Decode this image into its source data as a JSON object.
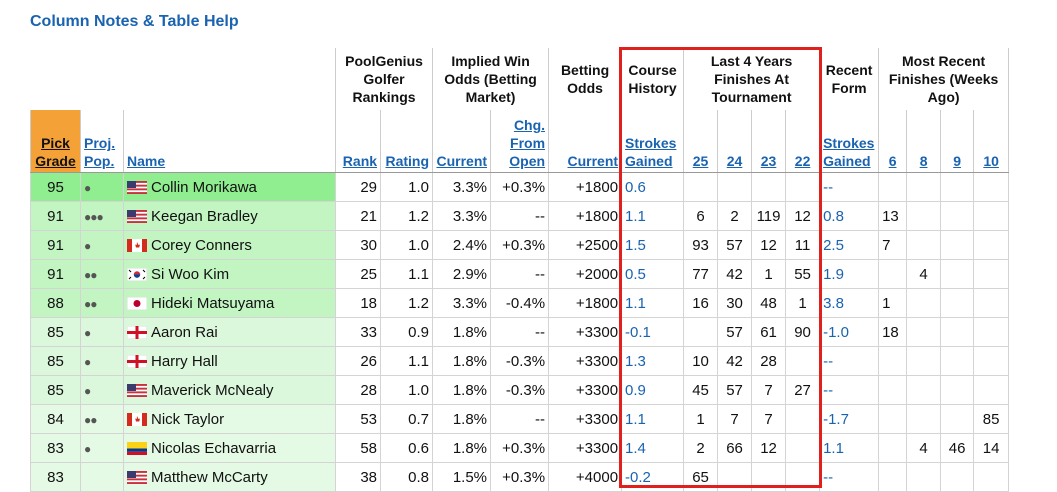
{
  "header": {
    "title": "Column Notes & Table Help"
  },
  "table": {
    "groups": [
      "PoolGenius Golfer Rankings",
      "Implied Win Odds (Betting Market)",
      "Betting Odds",
      "Course History",
      "Last 4 Years Finishes At Tournament",
      "Recent Form",
      "Most Recent Finishes (Weeks Ago)"
    ],
    "columns": [
      "Pick Grade",
      "Proj. Pop.",
      "Name",
      "Rank",
      "Rating",
      "Current",
      "Chg. From Open",
      "Current",
      "Strokes Gained",
      "25",
      "24",
      "23",
      "22",
      "Strokes Gained",
      "6",
      "8",
      "9",
      "10"
    ],
    "rows": [
      [
        "95",
        "●",
        "Collin Morikawa",
        "29",
        "1.0",
        "3.3%",
        "+0.3%",
        "+1800",
        "0.6",
        null,
        null,
        null,
        null,
        "--",
        null,
        null,
        null,
        null
      ],
      [
        "91",
        "●●●",
        "Keegan Bradley",
        "21",
        "1.2",
        "3.3%",
        "--",
        "+1800",
        "1.1",
        "6",
        "2",
        "119",
        "12",
        "0.8",
        "13",
        null,
        null,
        null
      ],
      [
        "91",
        "●",
        "Corey Conners",
        "30",
        "1.0",
        "2.4%",
        "+0.3%",
        "+2500",
        "1.5",
        "93",
        "57",
        "12",
        "11",
        "2.5",
        "7",
        null,
        null,
        null
      ],
      [
        "91",
        "●●",
        "Si Woo Kim",
        "25",
        "1.1",
        "2.9%",
        "--",
        "+2000",
        "0.5",
        "77",
        "42",
        "1",
        "55",
        "1.9",
        null,
        "4",
        null,
        null
      ],
      [
        "88",
        "●●",
        "Hideki Matsuyama",
        "18",
        "1.2",
        "3.3%",
        "-0.4%",
        "+1800",
        "1.1",
        "16",
        "30",
        "48",
        "1",
        "3.8",
        "1",
        null,
        null,
        null
      ],
      [
        "85",
        "●",
        "Aaron Rai",
        "33",
        "0.9",
        "1.8%",
        "--",
        "+3300",
        "-0.1",
        null,
        "57",
        "61",
        "90",
        "-1.0",
        "18",
        null,
        null,
        null
      ],
      [
        "85",
        "●",
        "Harry Hall",
        "26",
        "1.1",
        "1.8%",
        "-0.3%",
        "+3300",
        "1.3",
        "10",
        "42",
        "28",
        null,
        "--",
        null,
        null,
        null,
        null
      ],
      [
        "85",
        "●",
        "Maverick McNealy",
        "28",
        "1.0",
        "1.8%",
        "-0.3%",
        "+3300",
        "0.9",
        "45",
        "57",
        "7",
        "27",
        "--",
        null,
        null,
        null,
        null
      ],
      [
        "84",
        "●●",
        "Nick Taylor",
        "53",
        "0.7",
        "1.8%",
        "--",
        "+3300",
        "1.1",
        "1",
        "7",
        "7",
        null,
        "-1.7",
        null,
        null,
        null,
        "85"
      ],
      [
        "83",
        "●",
        "Nicolas Echavarria",
        "58",
        "0.6",
        "1.8%",
        "+0.3%",
        "+3300",
        "1.4",
        "2",
        "66",
        "12",
        null,
        "1.1",
        null,
        "4",
        "46",
        "14"
      ],
      [
        "83",
        null,
        "Matthew McCarty",
        "38",
        "0.8",
        "1.5%",
        "+0.3%",
        "+4000",
        "-0.2",
        "65",
        null,
        null,
        null,
        "--",
        null,
        null,
        null,
        null
      ]
    ]
  }
}
